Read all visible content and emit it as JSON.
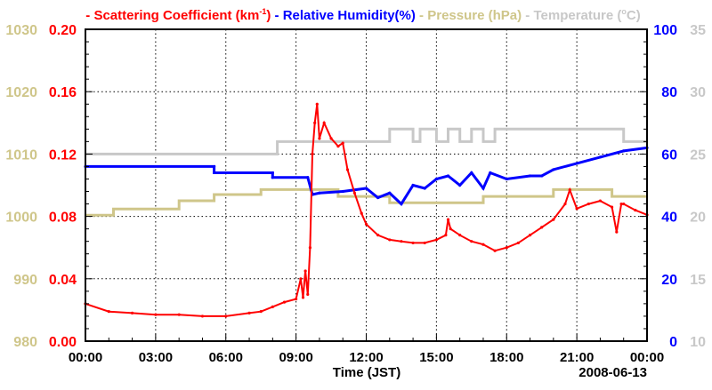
{
  "chart_data": {
    "type": "line",
    "date": "2008-06-13",
    "xlabel": "Time (JST)",
    "xlim": [
      0,
      24
    ],
    "x_ticks": [
      "00:00",
      "03:00",
      "06:00",
      "09:00",
      "12:00",
      "15:00",
      "18:00",
      "21:00",
      "00:00"
    ],
    "grid": true,
    "legend": {
      "placement": "top",
      "entries": [
        {
          "label": "Scattering Coefficient (km",
          "sup": "-1",
          "tail": ")",
          "color": "#ff0000"
        },
        {
          "label": "Relative Humidity(%)",
          "color": "#0000ff"
        },
        {
          "label": "Pressure (hPa)",
          "color": "#cfc68a"
        },
        {
          "label": "Temperature (",
          "sup": "o",
          "tail": "C)",
          "color": "#c8c8c8"
        }
      ]
    },
    "axes": {
      "scattering": {
        "side": "left-inner",
        "ylim": [
          0,
          0.2
        ],
        "ticks": [
          "0.00",
          "0.04",
          "0.08",
          "0.12",
          "0.16",
          "0.20"
        ],
        "color": "#ff0000"
      },
      "pressure": {
        "side": "left-outer",
        "ylim": [
          980,
          1030
        ],
        "ticks": [
          "980",
          "990",
          "1000",
          "1010",
          "1020",
          "1030"
        ],
        "color": "#cfc68a"
      },
      "humidity": {
        "side": "right-inner",
        "ylim": [
          0,
          100
        ],
        "ticks": [
          "0",
          "20",
          "40",
          "60",
          "80",
          "100"
        ],
        "color": "#0000ff"
      },
      "temperature": {
        "side": "right-outer",
        "ylim": [
          10,
          35
        ],
        "ticks": [
          "10",
          "15",
          "20",
          "25",
          "30",
          "35"
        ],
        "color": "#c8c8c8"
      }
    },
    "series": [
      {
        "name": "Temperature",
        "axis": "temperature",
        "color": "#c8c8c8",
        "x": [
          0,
          8.2,
          8.2,
          13,
          13,
          14,
          14,
          14.3,
          14.3,
          15,
          15,
          15.5,
          15.5,
          16,
          16,
          16.5,
          16.5,
          17,
          17,
          17.5,
          17.5,
          23,
          23,
          24
        ],
        "y": [
          25,
          25,
          26,
          26,
          27,
          27,
          26,
          26,
          27,
          27,
          26,
          26,
          27,
          27,
          26,
          26,
          27,
          27,
          26,
          26,
          27,
          27,
          26,
          26
        ]
      },
      {
        "name": "Pressure",
        "axis": "pressure",
        "color": "#cfc68a",
        "x": [
          0,
          1.2,
          1.2,
          4,
          4,
          5.5,
          5.5,
          7.5,
          7.5,
          10.8,
          10.8,
          13,
          13,
          17,
          17,
          20,
          20,
          22.5,
          22.5,
          24
        ],
        "y": [
          1000.2,
          1000.2,
          1001.2,
          1001.2,
          1002.5,
          1002.5,
          1003.5,
          1003.5,
          1004.3,
          1004.3,
          1003.2,
          1003.2,
          1002.2,
          1002.2,
          1003.2,
          1003.2,
          1004.3,
          1004.3,
          1003.2,
          1003.2
        ]
      },
      {
        "name": "Relative Humidity",
        "axis": "humidity",
        "color": "#0000ff",
        "x": [
          0,
          5.5,
          5.5,
          8,
          8,
          9.5,
          9.7,
          10,
          11,
          12,
          12.5,
          13,
          13.5,
          14,
          14.5,
          15,
          15.5,
          16,
          16.5,
          17,
          17.3,
          18,
          19,
          19.5,
          20,
          21,
          22,
          23,
          24
        ],
        "y": [
          56,
          56,
          54,
          54,
          52.5,
          52.5,
          47,
          47.5,
          48,
          49,
          46,
          47.5,
          44,
          50,
          49,
          52,
          53,
          50,
          54,
          49,
          54,
          52,
          53,
          53,
          55,
          57,
          59,
          61,
          62
        ]
      },
      {
        "name": "Scattering Coefficient",
        "axis": "scattering",
        "color": "#ff0000",
        "x": [
          0,
          1,
          2,
          3,
          4,
          5,
          6,
          7,
          7.5,
          8,
          8.5,
          9,
          9.2,
          9.3,
          9.4,
          9.5,
          9.6,
          9.7,
          9.8,
          9.9,
          10,
          10.2,
          10.5,
          10.8,
          11,
          11.2,
          11.5,
          11.8,
          12,
          12.5,
          13,
          13.5,
          14,
          14.5,
          15,
          15.4,
          15.5,
          15.6,
          16,
          16.5,
          17,
          17.5,
          18,
          18.5,
          19,
          19.5,
          20,
          20.5,
          20.7,
          21,
          21.5,
          22,
          22.5,
          22.7,
          22.9,
          23,
          23.5,
          24
        ],
        "y": [
          0.024,
          0.019,
          0.018,
          0.017,
          0.017,
          0.016,
          0.016,
          0.018,
          0.019,
          0.022,
          0.025,
          0.027,
          0.04,
          0.028,
          0.045,
          0.03,
          0.06,
          0.12,
          0.14,
          0.152,
          0.13,
          0.14,
          0.13,
          0.125,
          0.127,
          0.11,
          0.095,
          0.082,
          0.075,
          0.068,
          0.065,
          0.064,
          0.063,
          0.063,
          0.065,
          0.068,
          0.078,
          0.072,
          0.068,
          0.064,
          0.062,
          0.058,
          0.06,
          0.063,
          0.068,
          0.073,
          0.078,
          0.088,
          0.097,
          0.085,
          0.088,
          0.09,
          0.086,
          0.07,
          0.088,
          0.088,
          0.084,
          0.081
        ]
      }
    ]
  }
}
